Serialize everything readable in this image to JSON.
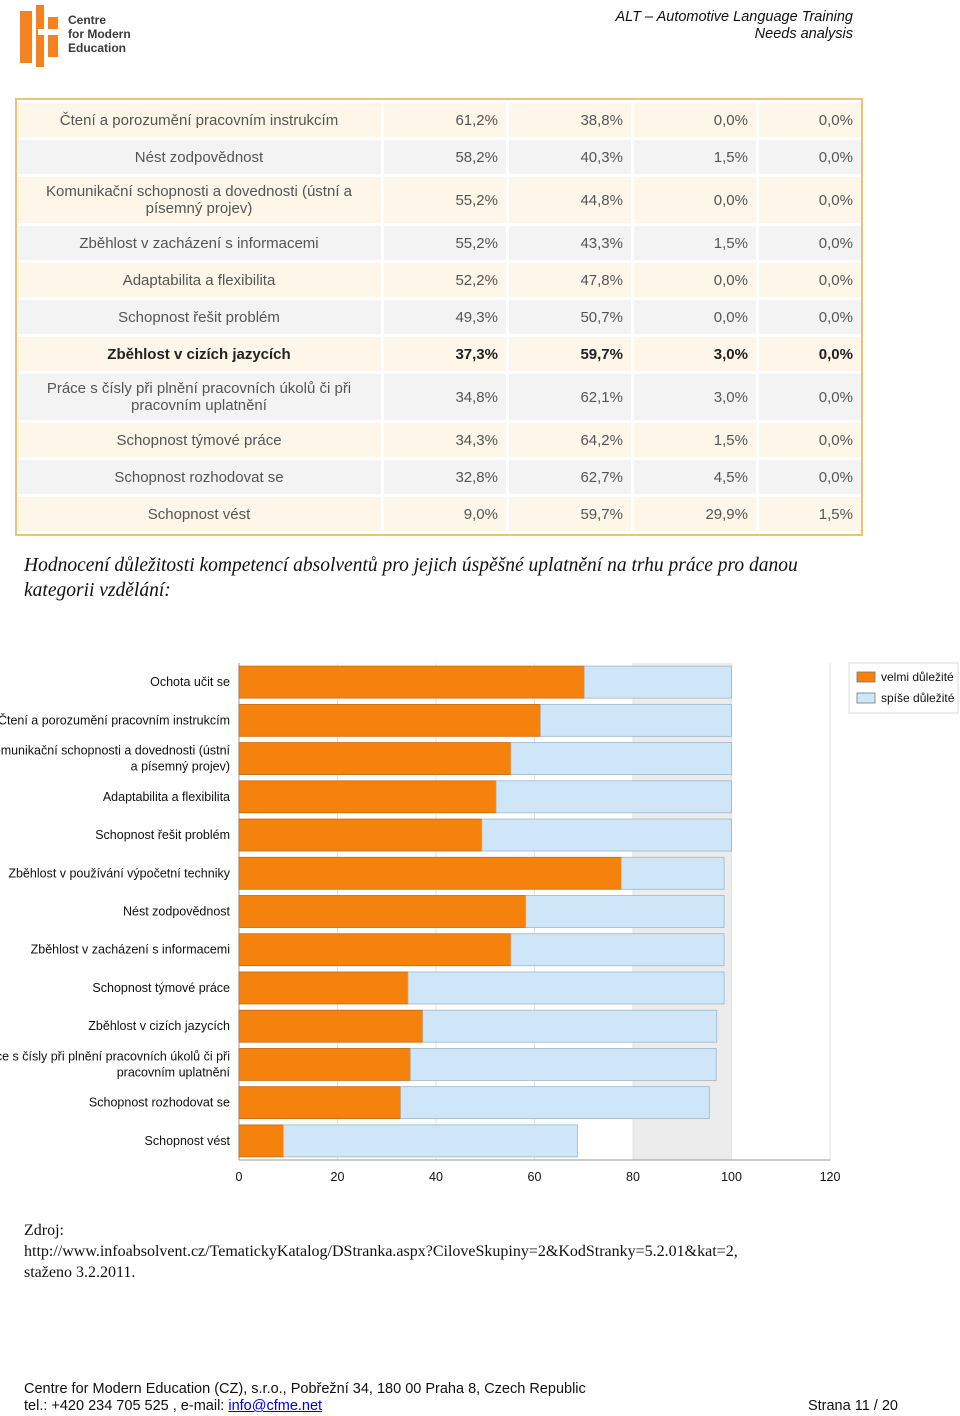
{
  "header": {
    "logo_lines": [
      "Centre",
      "for Modern",
      "Education"
    ],
    "title_line1": "ALT – Automotive Language Training",
    "title_line2": "Needs analysis"
  },
  "table": {
    "rows": [
      {
        "label": "Čtení a porozumění pracovním instrukcím",
        "v1": "61,2%",
        "v2": "38,8%",
        "v3": "0,0%",
        "v4": "0,0%"
      },
      {
        "label": "Nést zodpovědnost",
        "v1": "58,2%",
        "v2": "40,3%",
        "v3": "1,5%",
        "v4": "0,0%"
      },
      {
        "label": "Komunikační schopnosti a dovednosti (ústní a písemný projev)",
        "v1": "55,2%",
        "v2": "44,8%",
        "v3": "0,0%",
        "v4": "0,0%"
      },
      {
        "label": "Zběhlost v zacházení s informacemi",
        "v1": "55,2%",
        "v2": "43,3%",
        "v3": "1,5%",
        "v4": "0,0%"
      },
      {
        "label": "Adaptabilita a flexibilita",
        "v1": "52,2%",
        "v2": "47,8%",
        "v3": "0,0%",
        "v4": "0,0%"
      },
      {
        "label": "Schopnost řešit problém",
        "v1": "49,3%",
        "v2": "50,7%",
        "v3": "0,0%",
        "v4": "0,0%"
      },
      {
        "label": "Zběhlost v cizích jazycích",
        "v1": "37,3%",
        "v2": "59,7%",
        "v3": "3,0%",
        "v4": "0,0%"
      },
      {
        "label": "Práce s čísly při plnění pracovních úkolů či při pracovním uplatnění",
        "v1": "34,8%",
        "v2": "62,1%",
        "v3": "3,0%",
        "v4": "0,0%"
      },
      {
        "label": "Schopnost týmové práce",
        "v1": "34,3%",
        "v2": "64,2%",
        "v3": "1,5%",
        "v4": "0,0%"
      },
      {
        "label": "Schopnost rozhodovat se",
        "v1": "32,8%",
        "v2": "62,7%",
        "v3": "4,5%",
        "v4": "0,0%"
      },
      {
        "label": "Schopnost vést",
        "v1": "9,0%",
        "v2": "59,7%",
        "v3": "29,9%",
        "v4": "1,5%"
      }
    ]
  },
  "heading": "Hodnocení důležitosti kompetencí absolventů pro jejich úspěšné uplatnění na trhu práce pro danou kategorii vzdělání:",
  "chart_data": {
    "type": "bar",
    "orientation": "horizontal",
    "stacked": true,
    "categories": [
      "Ochota učit se",
      "Čtení a porozumění pracovním instrukcím",
      "Komunikační schopnosti a dovednosti (ústní a písemný projev)",
      "Adaptabilita a flexibilita",
      "Schopnost řešit problém",
      "Zběhlost v používání výpočetní techniky",
      "Nést zodpovědnost",
      "Zběhlost v zacházení s informacemi",
      "Schopnost týmové práce",
      "Zběhlost v cizích jazycích",
      "Práce s čísly při plnění pracovních úkolů či při pracovním uplatnění",
      "Schopnost rozhodovat se",
      "Schopnost vést"
    ],
    "category_lines": [
      [
        "Ochota učit se"
      ],
      [
        "Čtení a porozumění pracovním instrukcím"
      ],
      [
        "Komunikační schopnosti a dovednosti (ústní",
        "a písemný projev)"
      ],
      [
        "Adaptabilita a flexibilita"
      ],
      [
        "Schopnost řešit problém"
      ],
      [
        "Zběhlost v používání výpočetní techniky"
      ],
      [
        "Nést zodpovědnost"
      ],
      [
        "Zběhlost v zacházení s informacemi"
      ],
      [
        "Schopnost týmové práce"
      ],
      [
        "Zběhlost v cizích jazycích"
      ],
      [
        "Práce s čísly při plnění pracovních úkolů či při",
        "pracovním uplatnění"
      ],
      [
        "Schopnost rozhodovat se"
      ],
      [
        "Schopnost vést"
      ]
    ],
    "series": [
      {
        "name": "velmi důležité",
        "color": "#f5820d",
        "values": [
          70.1,
          61.2,
          55.2,
          52.2,
          49.3,
          77.6,
          58.2,
          55.2,
          34.3,
          37.3,
          34.8,
          32.8,
          9.0
        ]
      },
      {
        "name": "spíše důležité",
        "color": "#cfe6f8",
        "values": [
          29.9,
          38.8,
          44.8,
          47.8,
          50.7,
          20.9,
          40.3,
          43.3,
          64.2,
          59.7,
          62.1,
          62.7,
          59.7
        ]
      }
    ],
    "xlim": [
      0,
      120
    ],
    "xticks": [
      0,
      20,
      40,
      60,
      80,
      100,
      120
    ],
    "legend_position": "top-right"
  },
  "source": {
    "line1": "Zdroj:",
    "line2": "http://www.infoabsolvent.cz/TematickyKatalog/DStranka.aspx?CiloveSkupiny=2&KodStranky=5.2.01&kat=2,",
    "line3": "staženo 3.2.2011."
  },
  "footer": {
    "address": "Centre for Modern Education (CZ), s.r.o., Pobřežní 34, 180 00 Praha 8, Czech Republic",
    "contact_prefix": "tel.: +420 234 705 525 , e-mail: ",
    "email": "info@cfme.net",
    "page": "Strana 11 / 20"
  },
  "colors": {
    "accent_orange": "#f5820d",
    "light_blue": "#cfe6f8",
    "table_border": "#e8c37a"
  }
}
